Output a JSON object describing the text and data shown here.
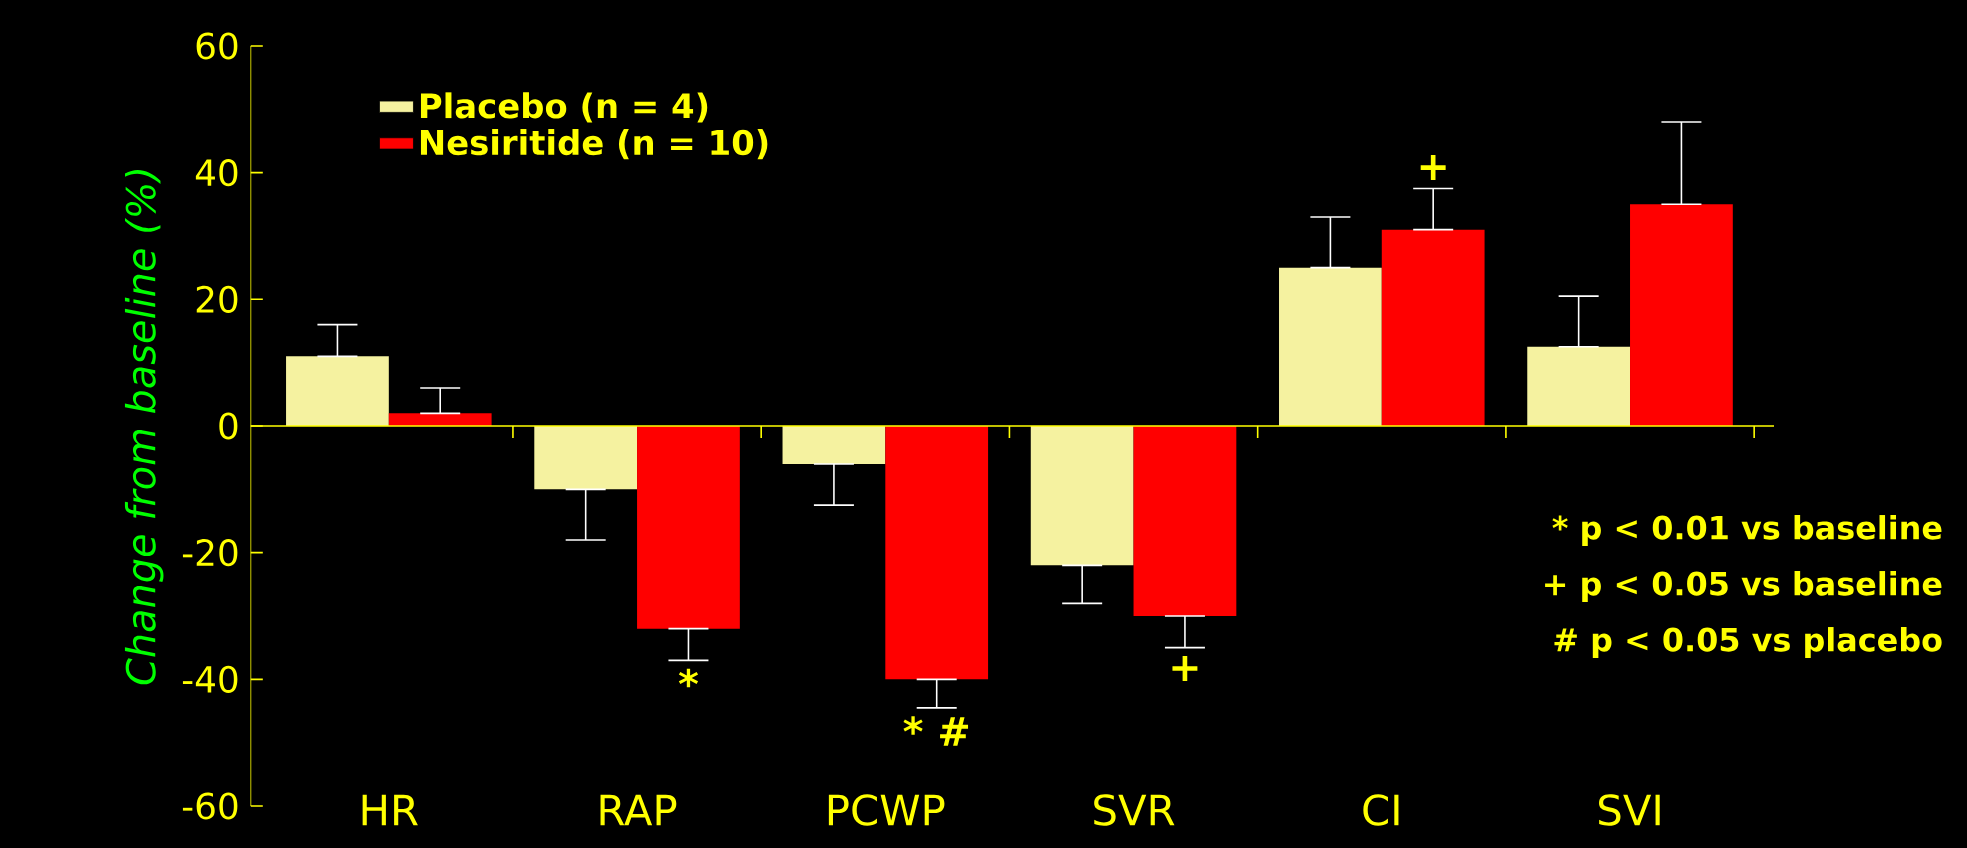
{
  "chart_data": {
    "type": "bar",
    "ylabel": "Change from baseline (%)",
    "categories": [
      "HR",
      "RAP",
      "PCWP",
      "SVR",
      "CI",
      "SVI"
    ],
    "series": [
      {
        "name": "Placebo (n = 4)",
        "color": "#f5f2a0",
        "values": [
          11,
          -10,
          -6,
          -22,
          25,
          12.5
        ],
        "errors": [
          [
            11,
            16
          ],
          [
            -18,
            -10
          ],
          [
            -12.5,
            -6
          ],
          [
            -28,
            -22
          ],
          [
            25,
            33
          ],
          [
            12.5,
            20.5
          ]
        ]
      },
      {
        "name": "Nesiritide (n = 10)",
        "color": "#ff0000",
        "values": [
          2,
          -32,
          -40,
          -30,
          31,
          35
        ],
        "errors": [
          [
            2,
            6
          ],
          [
            -37,
            -32
          ],
          [
            -44.5,
            -40
          ],
          [
            -35,
            -30
          ],
          [
            31,
            37.5
          ],
          [
            35,
            48
          ]
        ]
      }
    ],
    "ylim": [
      -60,
      60
    ],
    "yticks": [
      -60,
      -40,
      -20,
      0,
      20,
      40,
      60
    ],
    "legend": "top left",
    "ref_lines": [
      {
        "axis": "y",
        "value": 0,
        "color": "#ffff00"
      }
    ],
    "annotations": [
      {
        "text": "*",
        "x": "RAP",
        "y": -32
      },
      {
        "text": "* #",
        "x": "PCWP",
        "y": -40
      },
      {
        "text": "+",
        "x": "SVR",
        "y": -30
      },
      {
        "text": "+",
        "x": "CI",
        "y": 31
      },
      "* p < 0.01 vs baseline",
      "+ p < 0.05 vs baseline",
      "# p < 0.05 vs placebo"
    ]
  }
}
